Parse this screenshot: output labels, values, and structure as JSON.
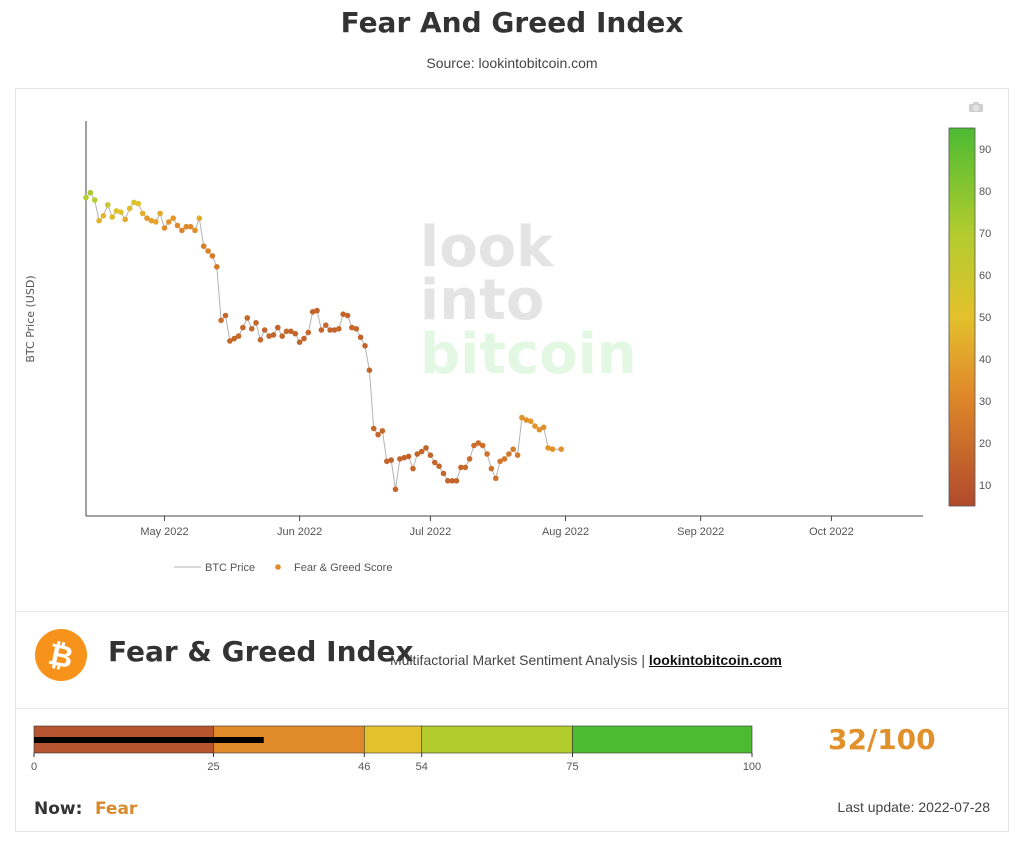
{
  "page": {
    "title": "Fear And Greed Index",
    "subtitle": "Source: lookintobitcoin.com"
  },
  "watermark": [
    "look",
    "into",
    "bitcoin"
  ],
  "icons": {
    "camera": "camera-icon",
    "logo": "bitcoin-logo-icon"
  },
  "brand": {
    "title": "Fear & Greed Index",
    "tagline": "Multifactorial Market Sentiment Analysis | ",
    "link": "lookintobitcoin.com"
  },
  "gauge": {
    "score_text": "32/100",
    "score": 32,
    "now_label": "Now:",
    "now_value": "Fear",
    "last_update": "Last update: 2022-07-28",
    "segments": [
      {
        "from": 0,
        "to": 25,
        "color": "#b65530"
      },
      {
        "from": 25,
        "to": 46,
        "color": "#e08a2a"
      },
      {
        "from": 46,
        "to": 54,
        "color": "#e3c12c"
      },
      {
        "from": 54,
        "to": 75,
        "color": "#b2cc2e"
      },
      {
        "from": 75,
        "to": 100,
        "color": "#4cbb32"
      }
    ],
    "ticks": [
      "0",
      "25",
      "46",
      "54",
      "75",
      "100"
    ]
  },
  "chart_data": {
    "type": "line",
    "title": "",
    "ylabel": "BTC Price (USD)",
    "xlabel": "",
    "x_ticks": [
      {
        "date": "2022-05-01",
        "label": "May 2022"
      },
      {
        "date": "2022-06-01",
        "label": "Jun 2022"
      },
      {
        "date": "2022-07-01",
        "label": "Jul 2022"
      },
      {
        "date": "2022-08-01",
        "label": "Aug 2022"
      },
      {
        "date": "2022-09-01",
        "label": "Sep 2022"
      },
      {
        "date": "2022-10-01",
        "label": "Oct 2022"
      }
    ],
    "x_range": [
      "2022-04-13",
      "2022-10-22"
    ],
    "y_range": [
      15000,
      47500
    ],
    "y_axis_labels_shown": false,
    "grid": false,
    "legend_position": "bottom-left",
    "series": [
      {
        "name": "BTC Price",
        "line_color": "#b3b3b3",
        "marker_color_by": "score",
        "points": [
          [
            "2022-04-13",
            41200,
            71
          ],
          [
            "2022-04-14",
            41600,
            75
          ],
          [
            "2022-04-15",
            41000,
            70
          ],
          [
            "2022-04-16",
            39300,
            45
          ],
          [
            "2022-04-17",
            39700,
            46
          ],
          [
            "2022-04-18",
            40600,
            62
          ],
          [
            "2022-04-19",
            39600,
            47
          ],
          [
            "2022-04-20",
            40100,
            55
          ],
          [
            "2022-04-21",
            40000,
            52
          ],
          [
            "2022-04-22",
            39400,
            42
          ],
          [
            "2022-04-23",
            40300,
            48
          ],
          [
            "2022-04-24",
            40800,
            56
          ],
          [
            "2022-04-25",
            40700,
            52
          ],
          [
            "2022-04-26",
            39900,
            44
          ],
          [
            "2022-04-27",
            39500,
            36
          ],
          [
            "2022-04-28",
            39300,
            38
          ],
          [
            "2022-04-29",
            39200,
            40
          ],
          [
            "2022-04-30",
            39900,
            40
          ],
          [
            "2022-05-01",
            38700,
            30
          ],
          [
            "2022-05-02",
            39200,
            34
          ],
          [
            "2022-05-03",
            39500,
            35
          ],
          [
            "2022-05-04",
            38900,
            30
          ],
          [
            "2022-05-05",
            38500,
            27
          ],
          [
            "2022-05-06",
            38800,
            29
          ],
          [
            "2022-05-07",
            38800,
            29
          ],
          [
            "2022-05-08",
            38500,
            31
          ],
          [
            "2022-05-09",
            39500,
            42
          ],
          [
            "2022-05-10",
            37200,
            25
          ],
          [
            "2022-05-11",
            36800,
            27
          ],
          [
            "2022-05-12",
            36400,
            24
          ],
          [
            "2022-05-13",
            35500,
            22
          ],
          [
            "2022-05-14",
            31100,
            16
          ],
          [
            "2022-05-15",
            31500,
            13
          ],
          [
            "2022-05-16",
            29400,
            13
          ],
          [
            "2022-05-17",
            29600,
            13
          ],
          [
            "2022-05-18",
            29800,
            15
          ],
          [
            "2022-05-19",
            30500,
            14
          ],
          [
            "2022-05-20",
            31300,
            14
          ],
          [
            "2022-05-21",
            30400,
            14
          ],
          [
            "2022-05-22",
            30900,
            12
          ],
          [
            "2022-05-23",
            29500,
            14
          ],
          [
            "2022-05-24",
            30300,
            13
          ],
          [
            "2022-05-25",
            29800,
            14
          ],
          [
            "2022-05-26",
            29900,
            12
          ],
          [
            "2022-05-27",
            30500,
            13
          ],
          [
            "2022-05-28",
            29800,
            14
          ],
          [
            "2022-05-29",
            30200,
            14
          ],
          [
            "2022-05-30",
            30200,
            13
          ],
          [
            "2022-05-31",
            30000,
            12
          ],
          [
            "2022-06-01",
            29300,
            12
          ],
          [
            "2022-06-02",
            29600,
            13
          ],
          [
            "2022-06-03",
            30100,
            14
          ],
          [
            "2022-06-04",
            31800,
            12
          ],
          [
            "2022-06-05",
            31900,
            12
          ],
          [
            "2022-06-06",
            30300,
            12
          ],
          [
            "2022-06-07",
            30700,
            14
          ],
          [
            "2022-06-08",
            30300,
            12
          ],
          [
            "2022-06-09",
            30300,
            12
          ],
          [
            "2022-06-10",
            30400,
            13
          ],
          [
            "2022-06-11",
            31600,
            12
          ],
          [
            "2022-06-12",
            31500,
            12
          ],
          [
            "2022-06-13",
            30500,
            12
          ],
          [
            "2022-06-14",
            30400,
            13
          ],
          [
            "2022-06-15",
            29700,
            12
          ],
          [
            "2022-06-16",
            29000,
            12
          ],
          [
            "2022-06-17",
            27000,
            13
          ],
          [
            "2022-06-18",
            22200,
            13
          ],
          [
            "2022-06-19",
            21700,
            14
          ],
          [
            "2022-06-20",
            22000,
            13
          ],
          [
            "2022-06-21",
            19500,
            12
          ],
          [
            "2022-06-22",
            19600,
            12
          ],
          [
            "2022-06-23",
            17200,
            13
          ],
          [
            "2022-06-24",
            19700,
            13
          ],
          [
            "2022-06-25",
            19800,
            12
          ],
          [
            "2022-06-26",
            19900,
            12
          ],
          [
            "2022-06-27",
            18900,
            13
          ],
          [
            "2022-06-28",
            20100,
            12
          ],
          [
            "2022-06-29",
            20300,
            13
          ],
          [
            "2022-06-30",
            20600,
            11
          ],
          [
            "2022-07-01",
            20000,
            13
          ],
          [
            "2022-07-02",
            19400,
            12
          ],
          [
            "2022-07-03",
            19100,
            12
          ],
          [
            "2022-07-04",
            18500,
            12
          ],
          [
            "2022-07-05",
            17900,
            12
          ],
          [
            "2022-07-06",
            17900,
            12
          ],
          [
            "2022-07-07",
            17900,
            12
          ],
          [
            "2022-07-08",
            19000,
            14
          ],
          [
            "2022-07-09",
            19000,
            15
          ],
          [
            "2022-07-10",
            19700,
            16
          ],
          [
            "2022-07-11",
            20800,
            17
          ],
          [
            "2022-07-12",
            21000,
            17
          ],
          [
            "2022-07-13",
            20800,
            18
          ],
          [
            "2022-07-14",
            20100,
            19
          ],
          [
            "2022-07-15",
            18900,
            19
          ],
          [
            "2022-07-16",
            18100,
            19
          ],
          [
            "2022-07-17",
            19500,
            21
          ],
          [
            "2022-07-18",
            19700,
            21
          ],
          [
            "2022-07-19",
            20100,
            21
          ],
          [
            "2022-07-20",
            20500,
            23
          ],
          [
            "2022-07-21",
            20000,
            23
          ],
          [
            "2022-07-22",
            23100,
            34
          ],
          [
            "2022-07-23",
            22900,
            33
          ],
          [
            "2022-07-24",
            22800,
            34
          ],
          [
            "2022-07-25",
            22400,
            34
          ],
          [
            "2022-07-26",
            22100,
            32
          ],
          [
            "2022-07-27",
            22300,
            31
          ],
          [
            "2022-07-28",
            20600,
            34
          ],
          [
            "2022-07-29",
            20500,
            33
          ],
          [
            "2022-07-31",
            20500,
            32
          ]
        ]
      },
      {
        "name": "Fear & Greed Score",
        "marker_color": "#e08a2a",
        "colorbar_ticks": [
          10,
          20,
          30,
          40,
          50,
          60,
          70,
          80,
          90
        ],
        "colorbar_range": [
          5,
          95
        ]
      }
    ]
  }
}
